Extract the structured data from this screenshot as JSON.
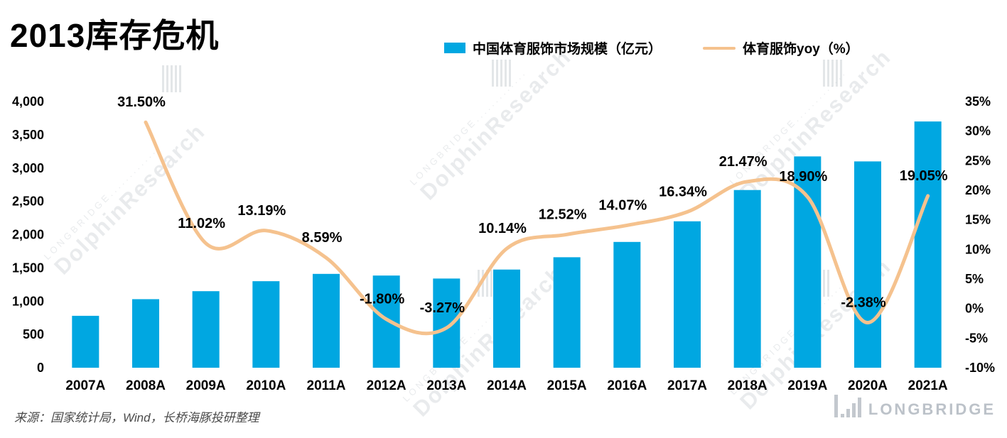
{
  "title": "2013库存危机",
  "legend": {
    "items": [
      {
        "label": "中国体育服饰市场规模（亿元）",
        "type": "bar"
      },
      {
        "label": "体育服饰yoy（%）",
        "type": "line"
      }
    ]
  },
  "source": "来源：国家统计局，Wind，长桥海豚投研整理",
  "watermark": {
    "brand": "LONGBRIDGE",
    "research": "DolphinResearch"
  },
  "footer_logo": {
    "text": "LONGBRIDGE"
  },
  "colors": {
    "bar": "#00A7E1",
    "line": "#F5C28E",
    "label": "#000000"
  },
  "chart_data": {
    "type": "combo",
    "title": "2013库存危机",
    "categories": [
      "2007A",
      "2008A",
      "2009A",
      "2010A",
      "2011A",
      "2012A",
      "2013A",
      "2014A",
      "2015A",
      "2016A",
      "2017A",
      "2018A",
      "2019A",
      "2020A",
      "2021A"
    ],
    "series": [
      {
        "name": "中国体育服饰市场规模（亿元）",
        "type": "bar",
        "axis": "left",
        "color": "#00A7E1",
        "values": [
          780,
          1030,
          1150,
          1300,
          1410,
          1385,
          1340,
          1475,
          1660,
          1890,
          2200,
          2670,
          3175,
          3100,
          3700
        ]
      },
      {
        "name": "体育服饰yoy（%）",
        "type": "line",
        "axis": "right",
        "color": "#F5C28E",
        "values": [
          null,
          31.5,
          11.02,
          13.19,
          8.59,
          -1.8,
          -3.27,
          10.14,
          12.52,
          14.07,
          16.34,
          21.47,
          18.9,
          -2.38,
          19.05
        ],
        "labels": [
          "",
          "31.50%",
          "11.02%",
          "13.19%",
          "8.59%",
          "-1.80%",
          "-3.27%",
          "10.14%",
          "12.52%",
          "14.07%",
          "16.34%",
          "21.47%",
          "18.90%",
          "-2.38%",
          "19.05%"
        ]
      }
    ],
    "left_axis": {
      "min": 0,
      "max": 4000,
      "step": 500,
      "ticks_bottom_to_top": [
        "0",
        "500",
        "1,000",
        "1,500",
        "2,000",
        "2,500",
        "3,000",
        "3,500",
        "4,000"
      ]
    },
    "right_axis": {
      "min": -10,
      "max": 35,
      "step": 5,
      "ticks_bottom_to_top": [
        "-10%",
        "-5%",
        "0%",
        "5%",
        "10%",
        "15%",
        "20%",
        "25%",
        "30%",
        "35%"
      ]
    },
    "grid": false,
    "legend_position": "top"
  }
}
